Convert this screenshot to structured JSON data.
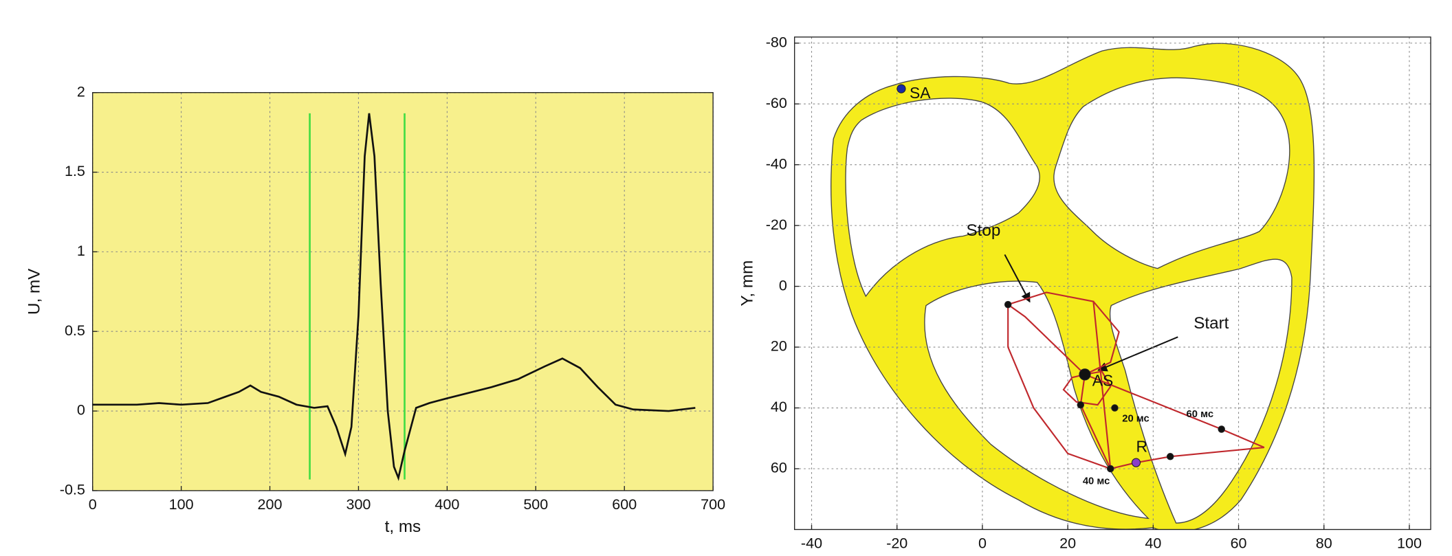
{
  "chart_data": [
    {
      "type": "line",
      "xlabel": "t, ms",
      "ylabel": "U, mV",
      "xlim": [
        0,
        700
      ],
      "ylim": [
        -0.5,
        2
      ],
      "xticks": [
        0,
        100,
        200,
        300,
        400,
        500,
        600,
        700
      ],
      "yticks": [
        -0.5,
        0,
        0.5,
        1,
        1.5,
        2
      ],
      "grid": true,
      "background": "#f7f08c",
      "series": [
        {
          "color": "#111111",
          "x": [
            0,
            50,
            75,
            100,
            130,
            150,
            165,
            178,
            190,
            210,
            230,
            250,
            265,
            275,
            285,
            292,
            300,
            307,
            312,
            318,
            325,
            333,
            340,
            345,
            352,
            365,
            380,
            400,
            450,
            480,
            510,
            530,
            550,
            570,
            590,
            610,
            650,
            680
          ],
          "values": [
            0.04,
            0.04,
            0.05,
            0.04,
            0.05,
            0.09,
            0.12,
            0.16,
            0.12,
            0.09,
            0.04,
            0.02,
            0.03,
            -0.1,
            -0.27,
            -0.1,
            0.6,
            1.6,
            1.87,
            1.6,
            0.8,
            0.0,
            -0.35,
            -0.42,
            -0.25,
            0.02,
            0.05,
            0.08,
            0.15,
            0.2,
            0.28,
            0.33,
            0.27,
            0.15,
            0.04,
            0.01,
            0.0,
            0.02
          ]
        }
      ],
      "vlines": {
        "x": [
          245,
          352
        ],
        "ylim": [
          -0.43,
          1.87
        ],
        "color": "#44dd44"
      }
    },
    {
      "type": "scatter",
      "ylabel": "Y, mm",
      "xlim": [
        -44,
        105
      ],
      "ylim": [
        -82,
        80
      ],
      "y_inverted": true,
      "xticks": [
        -40,
        -20,
        0,
        20,
        40,
        60,
        80,
        100
      ],
      "yticks": [
        -80,
        -60,
        -40,
        -20,
        0,
        20,
        40,
        60
      ],
      "grid": true,
      "trajectory": {
        "color": "#c0282d",
        "x": [
          24,
          28,
          30,
          27,
          22,
          19,
          21,
          24,
          23,
          26,
          30,
          36,
          44,
          66,
          56,
          40,
          24,
          10,
          6,
          6,
          12,
          20,
          30,
          30,
          26,
          15,
          6,
          15,
          26,
          32,
          30,
          24
        ],
        "y": [
          29,
          28,
          33,
          39,
          38,
          34,
          30,
          29,
          39,
          48,
          60,
          58,
          56,
          53,
          47,
          38,
          29,
          10,
          6,
          20,
          40,
          55,
          60,
          60,
          5,
          2,
          6,
          2,
          5,
          15,
          25,
          29
        ]
      },
      "points": {
        "x": [
          -19,
          24,
          6,
          23,
          31,
          56,
          44,
          30,
          36
        ],
        "y": [
          -65,
          29,
          6,
          39,
          40,
          47,
          56,
          60,
          58
        ],
        "colors": [
          "#1a2aa8",
          "#111111",
          "#111111",
          "#111111",
          "#111111",
          "#111111",
          "#111111",
          "#111111",
          "#8a3fc8"
        ],
        "labels": [
          "SA",
          "AS",
          null,
          null,
          "20 мс",
          "60 мс",
          null,
          "40 мс",
          "R"
        ]
      },
      "annotations": [
        "Stop",
        "Start"
      ]
    }
  ]
}
